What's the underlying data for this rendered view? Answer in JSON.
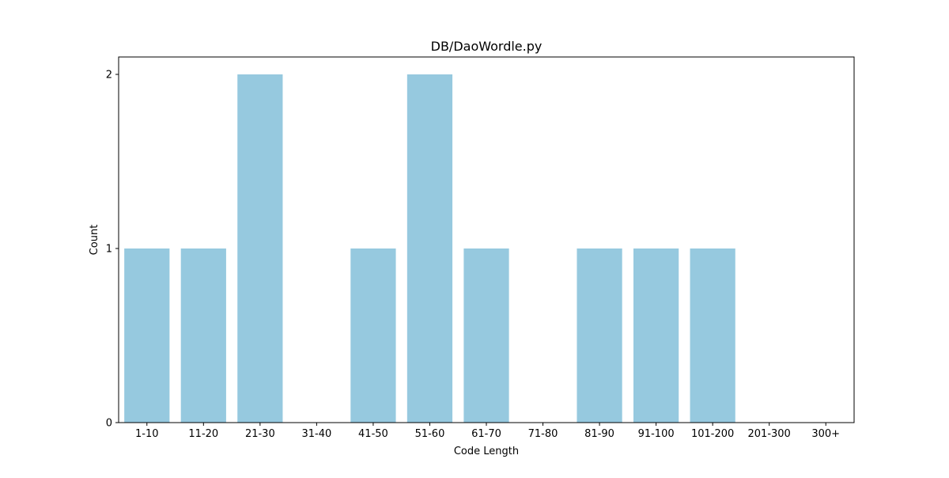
{
  "chart_data": {
    "type": "bar",
    "title": "DB/DaoWordle.py",
    "xlabel": "Code Length",
    "ylabel": "Count",
    "categories": [
      "1-10",
      "11-20",
      "21-30",
      "31-40",
      "41-50",
      "51-60",
      "61-70",
      "71-80",
      "81-90",
      "91-100",
      "101-200",
      "201-300",
      "300+"
    ],
    "values": [
      1,
      1,
      2,
      0,
      1,
      2,
      1,
      0,
      1,
      1,
      1,
      0,
      0
    ],
    "ylim": [
      0,
      2.1
    ],
    "yticks": [
      "0",
      "1",
      "2"
    ],
    "grid": false,
    "legend": "none",
    "bar_color": "#96c9df"
  }
}
